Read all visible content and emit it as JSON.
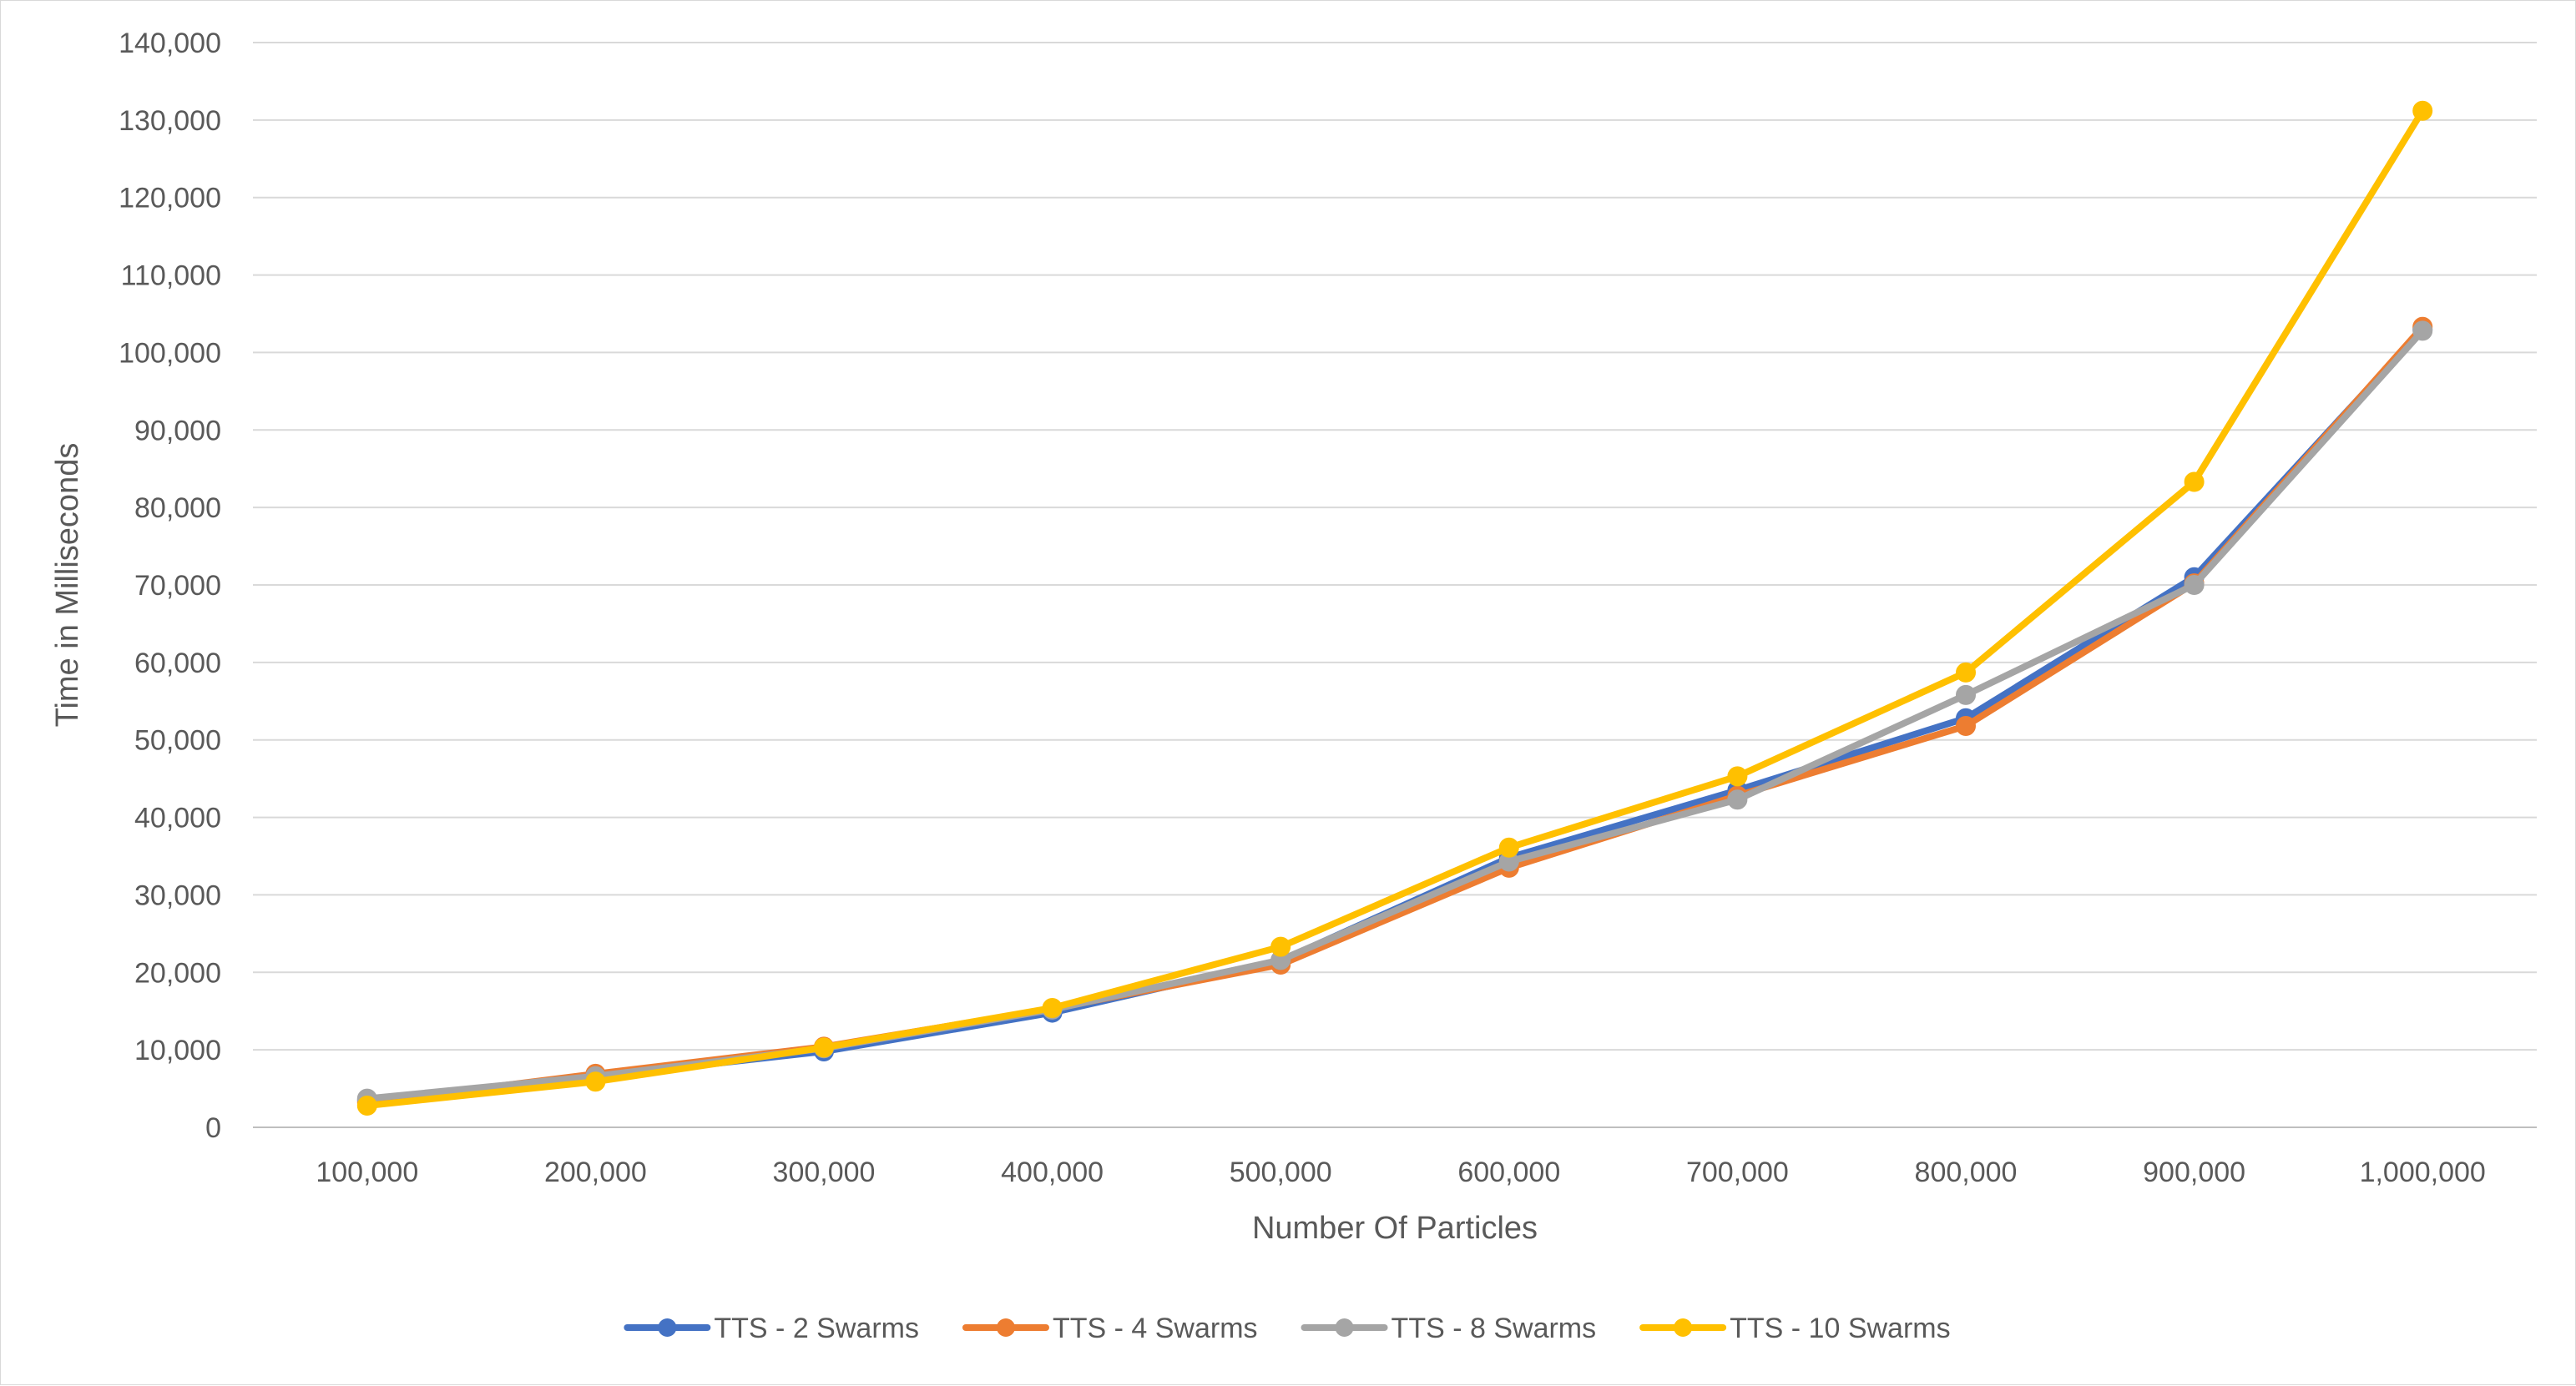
{
  "chart_data": {
    "type": "line",
    "title": "",
    "xlabel": "Number Of Particles",
    "ylabel": "Time in  Milliseconds",
    "categories": [
      "100,000",
      "200,000",
      "300,000",
      "400,000",
      "500,000",
      "600,000",
      "700,000",
      "800,000",
      "900,000",
      "1,000,000"
    ],
    "ylim": [
      0,
      140000
    ],
    "y_ticks": [
      "0",
      "10,000",
      "20,000",
      "30,000",
      "40,000",
      "50,000",
      "60,000",
      "70,000",
      "80,000",
      "90,000",
      "100,000",
      "110,000",
      "120,000",
      "130,000",
      "140,000"
    ],
    "grid": true,
    "legend_position": "bottom",
    "series": [
      {
        "name": "TTS - 2 Swarms",
        "color": "#4472C4",
        "values": [
          3500,
          6500,
          9800,
          14800,
          21500,
          34800,
          43500,
          52800,
          71000,
          103000
        ]
      },
      {
        "name": "TTS - 4 Swarms",
        "color": "#ED7D31",
        "values": [
          3200,
          6900,
          10400,
          15300,
          21000,
          33500,
          42800,
          51800,
          70200,
          103300
        ]
      },
      {
        "name": "TTS - 8 Swarms",
        "color": "#A5A5A5",
        "values": [
          3700,
          6600,
          10200,
          15200,
          21600,
          34300,
          42300,
          55800,
          70000,
          102800
        ]
      },
      {
        "name": "TTS - 10 Swarms",
        "color": "#FFC000",
        "values": [
          2800,
          5900,
          10300,
          15400,
          23300,
          36100,
          45300,
          58700,
          83300,
          131200
        ]
      }
    ]
  }
}
